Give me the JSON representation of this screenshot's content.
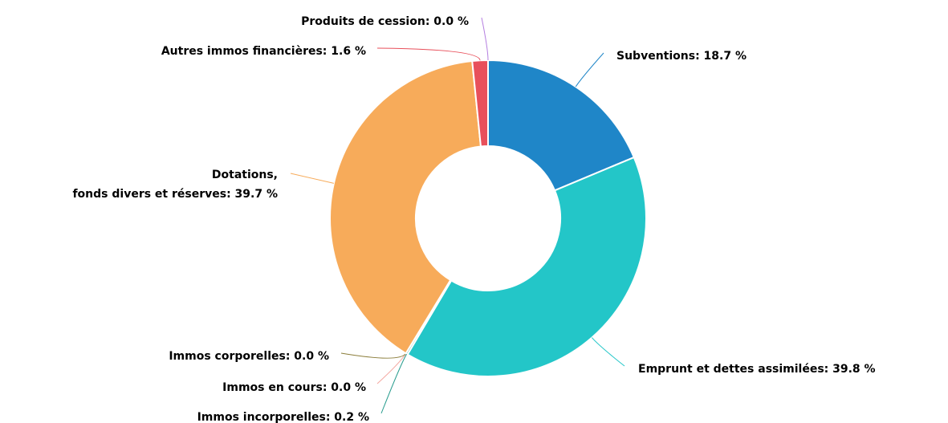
{
  "chart_data": {
    "type": "pie",
    "labels": [
      [
        "Subventions: 18.7 %"
      ],
      [
        "Emprunt et dettes assimilées: 39.8 %"
      ],
      [
        "Immos incorporelles: 0.2 %"
      ],
      [
        "Immos en cours: 0.0 %"
      ],
      [
        "Immos corporelles: 0.0 %"
      ],
      [
        "Dotations,",
        "fonds divers et réserves: 39.7 %"
      ],
      [
        "Autres immos financières: 1.6 %"
      ],
      [
        "Produits de cession: 0.0 %"
      ]
    ],
    "values": [
      18.7,
      39.8,
      0.2,
      0.0,
      0.0,
      39.7,
      1.6,
      0.0
    ],
    "colors": [
      "#1f86c8",
      "#23c6c8",
      "#2a9d8f",
      "#f4a7a0",
      "#8b7d3a",
      "#f7ab5a",
      "#e8505b",
      "#b57fe0"
    ],
    "donut": true
  }
}
